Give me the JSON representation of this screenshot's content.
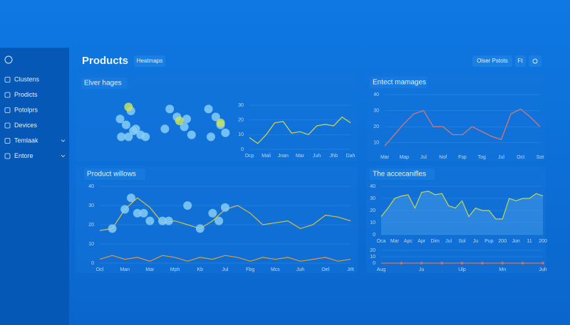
{
  "sidebar": [
    "Clustens",
    "Prodicts",
    "Potolprs",
    "Devices",
    "Temlaak",
    "Entore"
  ],
  "header": {
    "title": "Products",
    "tab": "Heatmaps",
    "buttons": [
      "Olser Pstots",
      "Ft"
    ]
  },
  "panels": [
    {
      "title": "Elver hages",
      "charts": [
        {
          "type": "scatter",
          "xlim": [
            0,
            100
          ],
          "ylim": [
            0,
            100
          ],
          "series": [
            {
              "color": "#86cdf7",
              "x": [
                5,
                10,
                14,
                16,
                12,
                22,
                26,
                46,
                52,
                58,
                64,
                42,
                78,
                84,
                88,
                92,
                6,
                18,
                60,
                80
              ],
              "y": [
                55,
                40,
                75,
                25,
                10,
                15,
                10,
                80,
                60,
                35,
                15,
                30,
                80,
                60,
                40,
                20,
                10,
                30,
                55,
                10
              ]
            },
            {
              "color": "#c9e060",
              "x": [
                12,
                54,
                88
              ],
              "y": [
                85,
                50,
                45
              ]
            }
          ]
        },
        {
          "type": "line",
          "ylim": [
            0,
            30
          ],
          "yticks": [
            0,
            10,
            20,
            30
          ],
          "categories": [
            "Ocp",
            null,
            "Mali",
            null,
            "Jnan",
            null,
            "Mar",
            null,
            "Juh",
            null,
            "Jhb",
            null,
            "Dah"
          ],
          "series": [
            {
              "color": "#d6d84a",
              "values": [
                8,
                4,
                10,
                18,
                19,
                11,
                12,
                10,
                16,
                17,
                16,
                22,
                18
              ]
            }
          ]
        }
      ]
    },
    {
      "title": "Entect mamages",
      "charts": [
        {
          "type": "line",
          "ylim": [
            5,
            40
          ],
          "yticks": [
            10,
            20,
            30,
            40
          ],
          "categories": [
            "Mar",
            null,
            "Map",
            null,
            "Jul",
            null,
            "Nof",
            null,
            "Fsp",
            null,
            "Tog",
            null,
            "Jul",
            null,
            "Oct",
            null,
            "Sot"
          ],
          "series": [
            {
              "color": "#e07a6a",
              "values": [
                8,
                15,
                22,
                28,
                30,
                20,
                20,
                15,
                15,
                20,
                17,
                14,
                12,
                28,
                31,
                26,
                20
              ]
            }
          ]
        }
      ]
    },
    {
      "title": "Product willows",
      "charts": [
        {
          "type": "line",
          "ylim": [
            0,
            40
          ],
          "yticks": [
            0,
            10,
            20,
            30,
            40
          ],
          "categories": [
            "Ocl",
            null,
            "Man",
            null,
            "Mar",
            null,
            "Mph",
            null,
            "Kb",
            null,
            "Jul",
            null,
            "Fbg",
            null,
            "Mcs",
            null,
            "Juh",
            null,
            "Oel",
            null,
            "Jrlt"
          ],
          "series": [
            {
              "color": "#d8c23e",
              "values": [
                17,
                18,
                28,
                34,
                29,
                21,
                22,
                20,
                18,
                22,
                28,
                30,
                26,
                20,
                21,
                22,
                18,
                20,
                25,
                24,
                22
              ]
            },
            {
              "color": "#e39a3a",
              "values": [
                2,
                4,
                2,
                3,
                1,
                4,
                3,
                1,
                3,
                2,
                4,
                3,
                1,
                3,
                2,
                3,
                1,
                2,
                3,
                1,
                2
              ]
            }
          ],
          "bubbles": {
            "color": "#86cdf7",
            "x": [
              1,
              2,
              2.5,
              3,
              4,
              5,
              5.5,
              7,
              8,
              9,
              10,
              3.5,
              9.5
            ],
            "y": [
              18,
              28,
              34,
              26,
              22,
              22,
              22,
              30,
              18,
              26,
              29,
              26,
              22
            ]
          }
        }
      ]
    },
    {
      "title": "The accecanifles",
      "charts": [
        {
          "type": "area",
          "ylim": [
            0,
            40
          ],
          "yticks": [
            0,
            10,
            20,
            30,
            40
          ],
          "categories": [
            "Oca",
            null,
            "Mar",
            null,
            "Apc",
            null,
            "Apr",
            null,
            "Dim",
            null,
            "Jul",
            null,
            "Sol",
            null,
            "Ju",
            null,
            "Pup",
            null,
            "200",
            null,
            "Jon",
            null,
            "11",
            null,
            "200"
          ],
          "series": [
            {
              "color": "#c9d84a",
              "values": [
                15,
                22,
                30,
                32,
                33,
                22,
                35,
                36,
                33,
                34,
                24,
                22,
                28,
                15,
                22,
                20,
                20,
                13,
                13,
                30,
                28,
                30,
                30,
                34,
                32
              ]
            }
          ]
        },
        {
          "type": "dot_line",
          "ylim": [
            0,
            20
          ],
          "yticks": [
            0,
            10,
            20
          ],
          "categories": [
            "Aug",
            null,
            "Ju",
            null,
            "Ulp",
            null,
            "Mn",
            null,
            "Juh"
          ],
          "series": [
            {
              "color": "#e0704f",
              "values": [
                0,
                0,
                0,
                0,
                0,
                0,
                0,
                0,
                0
              ]
            }
          ]
        }
      ]
    }
  ]
}
